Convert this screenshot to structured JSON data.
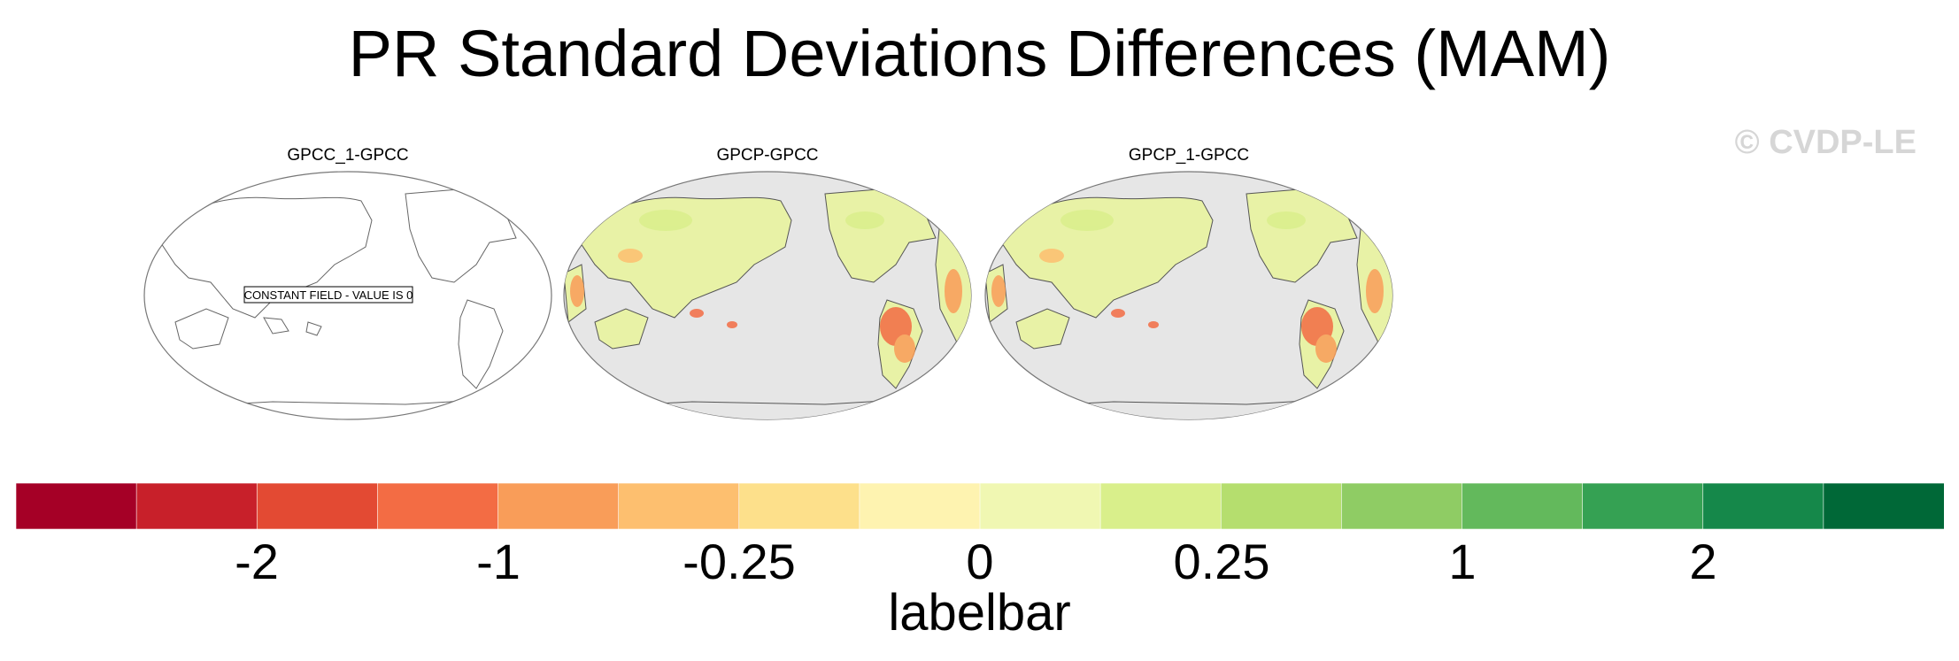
{
  "title": "PR Standard Deviations Differences (MAM)",
  "watermark": "© CVDP-LE",
  "panels": [
    {
      "title": "GPCC_1-GPCC",
      "constant_note": "CONSTANT FIELD - VALUE IS 0",
      "filled": false
    },
    {
      "title": "GPCP-GPCC",
      "filled": true
    },
    {
      "title": "GPCP_1-GPCC",
      "filled": true
    }
  ],
  "colors": {
    "ocean_fill": "#e6e6e6",
    "land_base": "#e8f2a6",
    "coast": "#555555",
    "labelbar": [
      "#a50026",
      "#c8202a",
      "#e34a33",
      "#f36c44",
      "#f99d59",
      "#fdbf6f",
      "#fde08b",
      "#fef3b0",
      "#f0f7b2",
      "#d9ef8b",
      "#b5de6e",
      "#8fcc64",
      "#63b95c",
      "#35a153",
      "#15884a",
      "#006837"
    ]
  },
  "labelbar": {
    "tick_labels": [
      "-2",
      "-1",
      "-0.25",
      "0",
      "0.25",
      "1",
      "2"
    ],
    "title": "labelbar"
  }
}
